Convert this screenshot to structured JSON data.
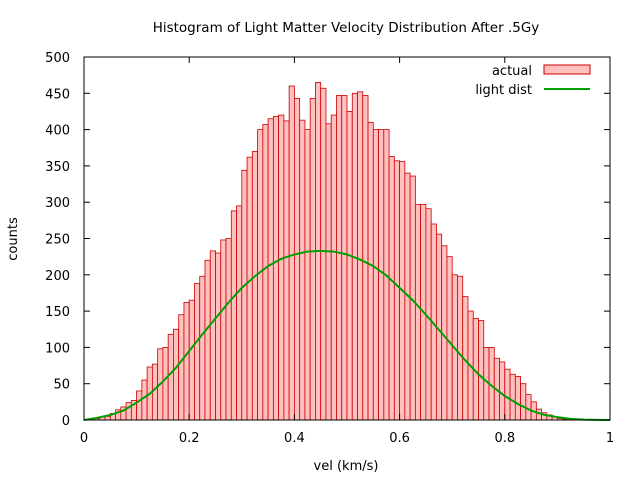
{
  "chart_data": {
    "type": "bar",
    "title": "Histogram of Light Matter Velocity Distribution After .5Gy",
    "xlabel": "vel (km/s)",
    "ylabel": "counts",
    "xlim": [
      0,
      1
    ],
    "ylim": [
      0,
      500
    ],
    "x_ticks": [
      "0",
      "0.2",
      "0.4",
      "0.6",
      "0.8",
      "1"
    ],
    "y_ticks": [
      "0",
      "50",
      "100",
      "150",
      "200",
      "250",
      "300",
      "350",
      "400",
      "450",
      "500"
    ],
    "grid": false,
    "legend_position": "top-right",
    "bin_width": 0.01,
    "series": [
      {
        "name": "actual",
        "kind": "histogram",
        "color_fill": "#ffc0c0",
        "color_edge": "#cc0000",
        "bin_starts": [
          0,
          0.01,
          0.02,
          0.03,
          0.04,
          0.05,
          0.06,
          0.07,
          0.08,
          0.09,
          0.1,
          0.11,
          0.12,
          0.13,
          0.14,
          0.15,
          0.16,
          0.17,
          0.18,
          0.19,
          0.2,
          0.21,
          0.22,
          0.23,
          0.24,
          0.25,
          0.26,
          0.27,
          0.28,
          0.29,
          0.3,
          0.31,
          0.32,
          0.33,
          0.34,
          0.35,
          0.36,
          0.37,
          0.38,
          0.39,
          0.4,
          0.41,
          0.42,
          0.43,
          0.44,
          0.45,
          0.46,
          0.47,
          0.48,
          0.49,
          0.5,
          0.51,
          0.52,
          0.53,
          0.54,
          0.55,
          0.56,
          0.57,
          0.58,
          0.59,
          0.6,
          0.61,
          0.62,
          0.63,
          0.64,
          0.65,
          0.66,
          0.67,
          0.68,
          0.69,
          0.7,
          0.71,
          0.72,
          0.73,
          0.74,
          0.75,
          0.76,
          0.77,
          0.78,
          0.79,
          0.8,
          0.81,
          0.82,
          0.83,
          0.84,
          0.85,
          0.86,
          0.87,
          0.88,
          0.89,
          0.9,
          0.91,
          0.92,
          0.93,
          0.94,
          0.95,
          0.96,
          0.97,
          0.98,
          0.99
        ],
        "values": [
          0,
          1,
          2,
          4,
          5,
          9,
          14,
          18,
          24,
          27,
          40,
          55,
          73,
          77,
          98,
          100,
          118,
          125,
          145,
          162,
          165,
          188,
          198,
          220,
          233,
          230,
          248,
          250,
          288,
          295,
          344,
          362,
          370,
          400,
          407,
          415,
          418,
          420,
          412,
          460,
          443,
          413,
          400,
          443,
          465,
          457,
          408,
          420,
          447,
          447,
          425,
          450,
          452,
          447,
          410,
          400,
          400,
          400,
          363,
          357,
          356,
          340,
          336,
          297,
          297,
          291,
          270,
          256,
          240,
          225,
          200,
          198,
          170,
          150,
          140,
          137,
          100,
          100,
          85,
          80,
          70,
          63,
          60,
          50,
          35,
          25,
          15,
          10,
          7,
          4,
          2,
          1,
          0,
          0,
          0,
          0,
          0,
          0,
          0,
          0
        ]
      },
      {
        "name": "light dist",
        "kind": "curve",
        "color": "#00a000",
        "x": [
          0,
          0.025,
          0.05,
          0.075,
          0.1,
          0.125,
          0.15,
          0.175,
          0.2,
          0.225,
          0.25,
          0.275,
          0.3,
          0.325,
          0.35,
          0.375,
          0.4,
          0.425,
          0.45,
          0.475,
          0.5,
          0.525,
          0.55,
          0.575,
          0.6,
          0.625,
          0.65,
          0.675,
          0.7,
          0.725,
          0.75,
          0.775,
          0.8,
          0.825,
          0.85,
          0.875,
          0.9,
          0.925,
          0.95,
          0.975,
          1.0
        ],
        "y": [
          0,
          3,
          7,
          13,
          24,
          36,
          53,
          72,
          95,
          118,
          140,
          162,
          182,
          198,
          212,
          222,
          228,
          232,
          233,
          232,
          228,
          221,
          212,
          199,
          182,
          165,
          145,
          124,
          103,
          82,
          63,
          47,
          33,
          22,
          13,
          7,
          4,
          1.5,
          0.5,
          0.2,
          0
        ]
      }
    ]
  }
}
